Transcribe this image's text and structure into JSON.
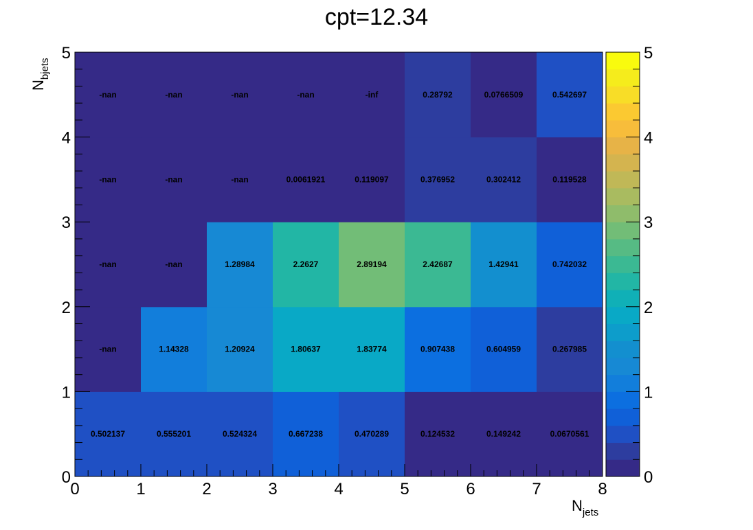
{
  "chart_data": {
    "type": "heatmap",
    "title": "cpt=12.34",
    "xlabel": {
      "main": "N",
      "sub": "jets"
    },
    "ylabel": {
      "main": "N",
      "sub": "bjets"
    },
    "xlim": [
      0,
      8
    ],
    "ylim": [
      0,
      5
    ],
    "xticks": [
      "0",
      "1",
      "2",
      "3",
      "4",
      "5",
      "6",
      "7",
      "8"
    ],
    "yticks": [
      "0",
      "1",
      "2",
      "3",
      "4",
      "5"
    ],
    "zlim": [
      0,
      5
    ],
    "zticks": [
      "0",
      "1",
      "2",
      "3",
      "4",
      "5"
    ],
    "colormap": "parula",
    "x_bins": [
      0,
      1,
      2,
      3,
      4,
      5,
      6,
      7,
      8
    ],
    "y_bins": [
      0,
      1,
      2,
      3,
      4,
      5
    ],
    "rows": [
      {
        "y_bin": [
          0,
          1
        ],
        "values": [
          0.502137,
          0.555201,
          0.524324,
          0.667238,
          0.470289,
          0.124532,
          0.149242,
          0.0670561
        ],
        "labels": [
          "0.502137",
          "0.555201",
          "0.524324",
          "0.667238",
          "0.470289",
          "0.124532",
          "0.149242",
          "0.0670561"
        ]
      },
      {
        "y_bin": [
          1,
          2
        ],
        "values": [
          null,
          1.14328,
          1.20924,
          1.80637,
          1.83774,
          0.907438,
          0.604959,
          0.267985
        ],
        "labels": [
          "-nan",
          "1.14328",
          "1.20924",
          "1.80637",
          "1.83774",
          "0.907438",
          "0.604959",
          "0.267985"
        ]
      },
      {
        "y_bin": [
          2,
          3
        ],
        "values": [
          null,
          null,
          1.28984,
          2.2627,
          2.89194,
          2.42687,
          1.42941,
          0.742032
        ],
        "labels": [
          "-nan",
          "-nan",
          "1.28984",
          "2.2627",
          "2.89194",
          "2.42687",
          "1.42941",
          "0.742032"
        ]
      },
      {
        "y_bin": [
          3,
          4
        ],
        "values": [
          null,
          null,
          null,
          0.0061921,
          0.119097,
          0.376952,
          0.302412,
          0.119528
        ],
        "labels": [
          "-nan",
          "-nan",
          "-nan",
          "0.0061921",
          "0.119097",
          "0.376952",
          "0.302412",
          "0.119528"
        ]
      },
      {
        "y_bin": [
          4,
          5
        ],
        "values": [
          null,
          null,
          null,
          null,
          null,
          0.28792,
          0.0766509,
          0.542697
        ],
        "labels": [
          "-nan",
          "-nan",
          "-nan",
          "-nan",
          "-inf",
          "0.28792",
          "0.0766509",
          "0.542697"
        ]
      }
    ],
    "grid": false,
    "legend": "colorbar-right"
  },
  "colors": {
    "invalid_cell": "#352a87",
    "palette": [
      "#352a87",
      "#2d3d9f",
      "#1f50c4",
      "#1060d8",
      "#0c6fe0",
      "#127edb",
      "#1789d4",
      "#138fcf",
      "#0d9dcb",
      "#09a9c6",
      "#10b0b7",
      "#22b6a5",
      "#3bb993",
      "#56bb84",
      "#72bd77",
      "#8fbc6b",
      "#a9bb60",
      "#c0b857",
      "#d4b44f",
      "#e7b347",
      "#f7bd3b",
      "#fbc931",
      "#f8dd27",
      "#f5ec1c",
      "#f9fb0e"
    ]
  }
}
